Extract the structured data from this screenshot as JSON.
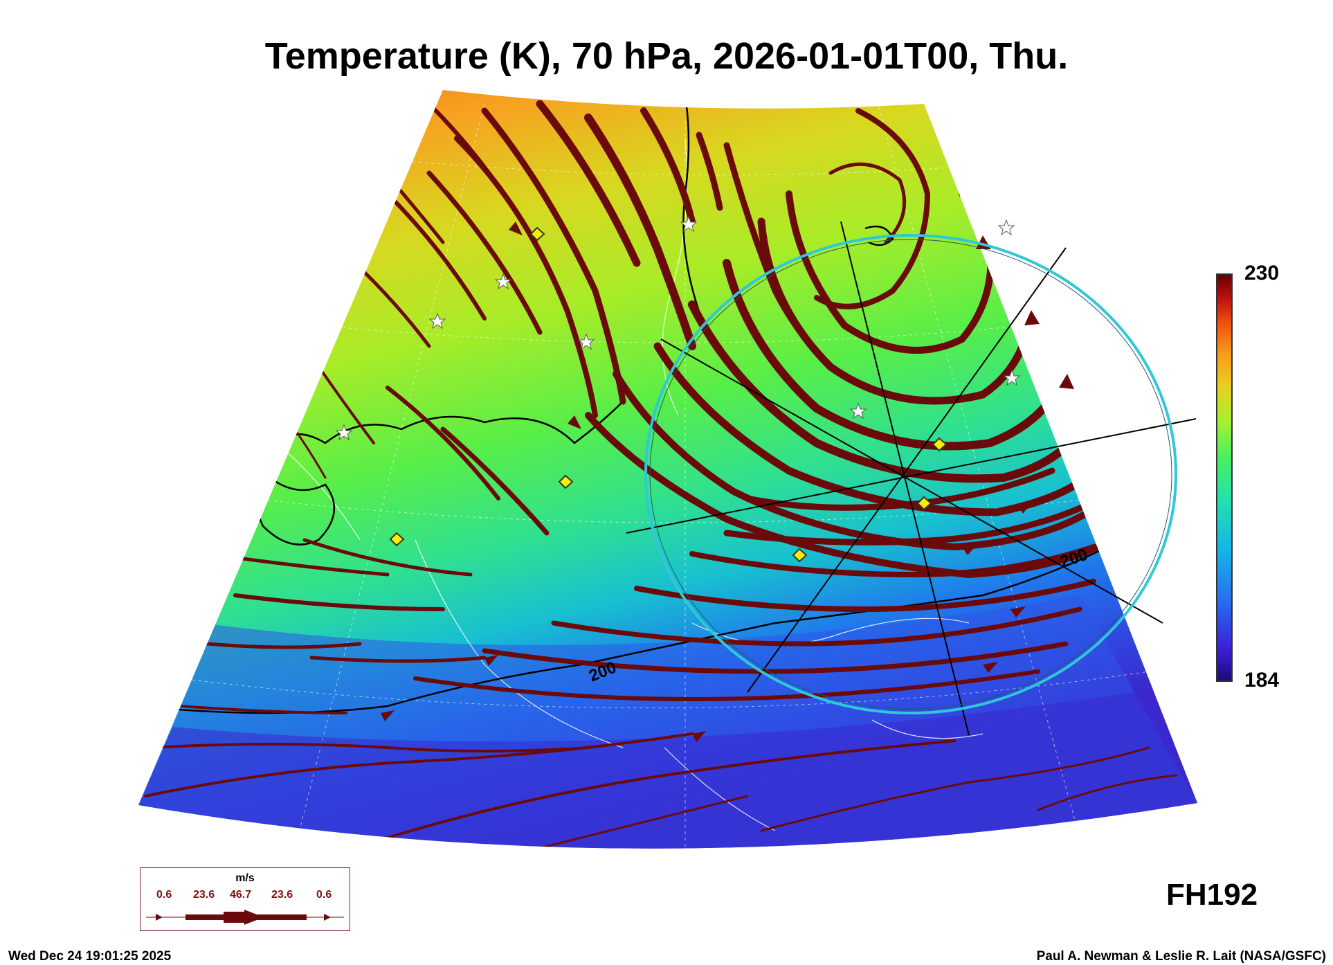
{
  "title": "Temperature (K), 70 hPa, 2026-01-01T00, Thu.",
  "colorbar": {
    "max_label": "230",
    "min_label": "184",
    "min": 184,
    "max": 230,
    "colors": [
      "#1a0a7a",
      "#3a20d8",
      "#2870f0",
      "#14b4e8",
      "#22e0b0",
      "#48f060",
      "#a8f030",
      "#e8d020",
      "#f8a018",
      "#f05010",
      "#c01010",
      "#600000"
    ]
  },
  "contour_label": "200",
  "forecast_hour": "FH192",
  "timestamp": "Wed Dec 24 19:01:25 2025",
  "credit": "Paul A. Newman & Leslie R. Lait (NASA/GSFC)",
  "wind_legend": {
    "unit": "m/s",
    "values": [
      "0.6",
      "23.6",
      "46.7",
      "23.6",
      "0.6"
    ]
  },
  "colors": {
    "streamline": "#6a0a0a",
    "ring": "#30c8d8",
    "contour": "#000000"
  }
}
